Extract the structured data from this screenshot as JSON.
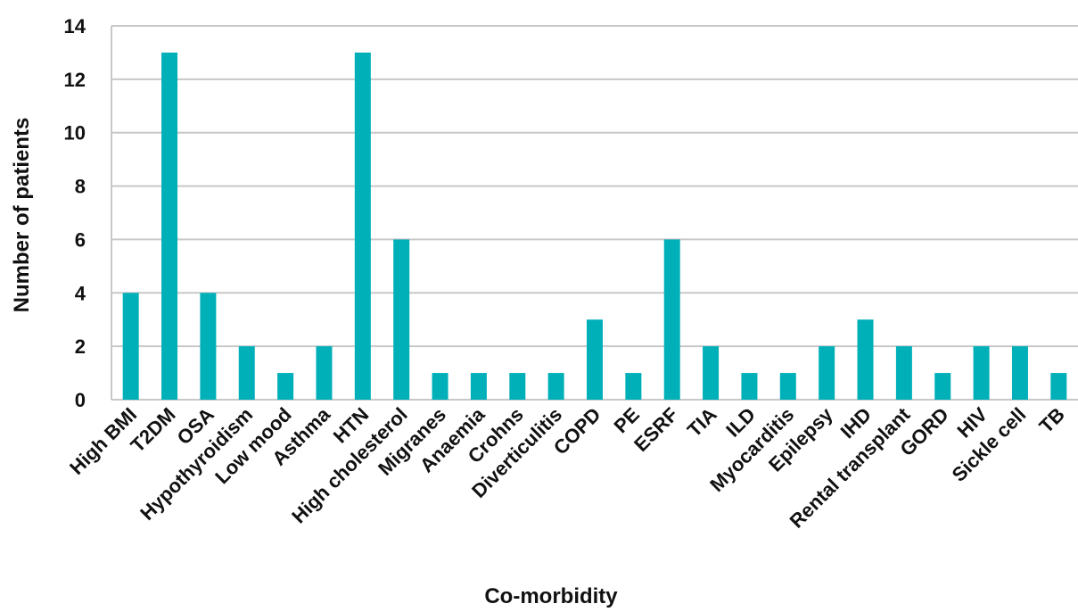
{
  "chart_data": {
    "type": "bar",
    "xlabel": "Co-morbidity",
    "ylabel": "Number of patients",
    "ylim": [
      0,
      14
    ],
    "yticks": [
      0,
      2,
      4,
      6,
      8,
      10,
      12,
      14
    ],
    "ytick_labels": [
      "0",
      "2",
      "4",
      "6",
      "8",
      "10",
      "12",
      "14"
    ],
    "grid": true,
    "bar_color": "#00b0b9",
    "categories": [
      "High BMI",
      "T2DM",
      "OSA",
      "Hypothyroidism",
      "Low mood",
      "Asthma",
      "HTN",
      "High cholesterol",
      "Migranes",
      "Anaemia",
      "Crohns",
      "Diverticulitis",
      "COPD",
      "PE",
      "ESRF",
      "TIA",
      "ILD",
      "Myocarditis",
      "Epilepsy",
      "IHD",
      "Rental transplant",
      "GORD",
      "HIV",
      "Sickle cell",
      "TB"
    ],
    "values": [
      4,
      13,
      4,
      2,
      1,
      2,
      13,
      6,
      1,
      1,
      1,
      1,
      3,
      1,
      6,
      2,
      1,
      1,
      2,
      3,
      2,
      1,
      2,
      2,
      1
    ]
  }
}
